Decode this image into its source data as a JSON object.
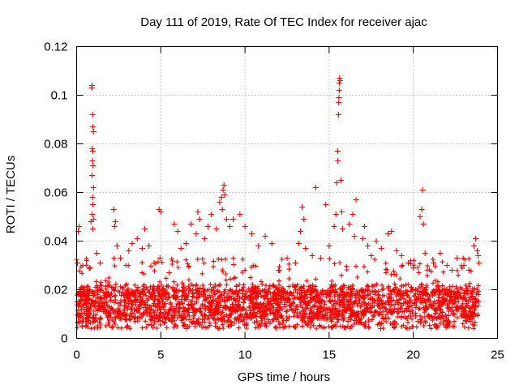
{
  "chart_data": {
    "type": "scatter",
    "title": "Day 111 of 2019, Rate Of TEC Index for receiver ajac",
    "xlabel": "GPS time / hours",
    "ylabel": "ROTI / TECUs",
    "xlim": [
      0,
      25
    ],
    "ylim": [
      0,
      0.12
    ],
    "xticks": [
      0,
      5,
      10,
      15,
      20,
      25
    ],
    "xtick_labels": [
      "0",
      "5",
      "10",
      "15",
      "20",
      "25"
    ],
    "yticks": [
      0,
      0.02,
      0.04,
      0.06,
      0.08,
      0.1,
      0.12
    ],
    "ytick_labels": [
      "0",
      "0.02",
      "0.04",
      "0.06",
      "0.08",
      "0.1",
      "0.12"
    ],
    "grid": true,
    "marker": "+",
    "color": "#ff0000",
    "series": [
      {
        "name": "ROTI",
        "points": [
          [
            0.05,
            0.031
          ],
          [
            0.1,
            0.044
          ],
          [
            0.15,
            0.046
          ],
          [
            0.2,
            0.019
          ],
          [
            0.3,
            0.021
          ],
          [
            0.5,
            0.018
          ],
          [
            0.8,
            0.029
          ],
          [
            0.85,
            0.048
          ],
          [
            0.9,
            0.103
          ],
          [
            0.92,
            0.104
          ],
          [
            0.95,
            0.092
          ],
          [
            0.97,
            0.087
          ],
          [
            1.0,
            0.085
          ],
          [
            0.93,
            0.078
          ],
          [
            0.96,
            0.077
          ],
          [
            0.94,
            0.073
          ],
          [
            0.98,
            0.071
          ],
          [
            0.92,
            0.067
          ],
          [
            1.0,
            0.062
          ],
          [
            0.95,
            0.058
          ],
          [
            0.97,
            0.055
          ],
          [
            0.93,
            0.051
          ],
          [
            1.0,
            0.049
          ],
          [
            0.96,
            0.045
          ],
          [
            1.2,
            0.035
          ],
          [
            1.4,
            0.031
          ],
          [
            2.2,
            0.053
          ],
          [
            2.3,
            0.048
          ],
          [
            2.25,
            0.046
          ],
          [
            2.4,
            0.038
          ],
          [
            2.6,
            0.033
          ],
          [
            3.1,
            0.036
          ],
          [
            3.3,
            0.039
          ],
          [
            3.6,
            0.041
          ],
          [
            3.9,
            0.037
          ],
          [
            4.05,
            0.045
          ],
          [
            4.3,
            0.038
          ],
          [
            4.6,
            0.031
          ],
          [
            4.9,
            0.053
          ],
          [
            5.0,
            0.052
          ],
          [
            4.95,
            0.033
          ],
          [
            5.5,
            0.027
          ],
          [
            5.8,
            0.047
          ],
          [
            6.0,
            0.044
          ],
          [
            6.2,
            0.037
          ],
          [
            6.5,
            0.039
          ],
          [
            6.8,
            0.047
          ],
          [
            7.1,
            0.043
          ],
          [
            7.2,
            0.052
          ],
          [
            7.3,
            0.049
          ],
          [
            7.6,
            0.041
          ],
          [
            7.8,
            0.046
          ],
          [
            8.0,
            0.051
          ],
          [
            8.3,
            0.045
          ],
          [
            8.5,
            0.056
          ],
          [
            8.6,
            0.058
          ],
          [
            8.7,
            0.061
          ],
          [
            8.75,
            0.063
          ],
          [
            8.8,
            0.059
          ],
          [
            8.65,
            0.053
          ],
          [
            8.9,
            0.049
          ],
          [
            9.1,
            0.046
          ],
          [
            9.3,
            0.049
          ],
          [
            9.7,
            0.051
          ],
          [
            10.0,
            0.046
          ],
          [
            10.4,
            0.043
          ],
          [
            10.8,
            0.038
          ],
          [
            11.2,
            0.042
          ],
          [
            11.6,
            0.039
          ],
          [
            12.0,
            0.028
          ],
          [
            12.5,
            0.033
          ],
          [
            13.0,
            0.031
          ],
          [
            13.2,
            0.039
          ],
          [
            13.3,
            0.044
          ],
          [
            13.4,
            0.054
          ],
          [
            13.5,
            0.049
          ],
          [
            13.6,
            0.037
          ],
          [
            14.0,
            0.034
          ],
          [
            14.2,
            0.062
          ],
          [
            14.5,
            0.033
          ],
          [
            14.8,
            0.055
          ],
          [
            15.0,
            0.038
          ],
          [
            15.3,
            0.046
          ],
          [
            15.4,
            0.051
          ],
          [
            15.45,
            0.064
          ],
          [
            15.5,
            0.077
          ],
          [
            15.52,
            0.073
          ],
          [
            15.55,
            0.092
          ],
          [
            15.57,
            0.097
          ],
          [
            15.6,
            0.102
          ],
          [
            15.6,
            0.105
          ],
          [
            15.62,
            0.107
          ],
          [
            15.65,
            0.106
          ],
          [
            15.58,
            0.099
          ],
          [
            15.7,
            0.065
          ],
          [
            15.75,
            0.052
          ],
          [
            15.8,
            0.045
          ],
          [
            16.2,
            0.047
          ],
          [
            16.4,
            0.051
          ],
          [
            16.6,
            0.057
          ],
          [
            16.5,
            0.042
          ],
          [
            17.0,
            0.041
          ],
          [
            17.1,
            0.046
          ],
          [
            17.3,
            0.038
          ],
          [
            17.5,
            0.034
          ],
          [
            17.8,
            0.04
          ],
          [
            18.1,
            0.037
          ],
          [
            18.5,
            0.043
          ],
          [
            18.7,
            0.044
          ],
          [
            19.0,
            0.036
          ],
          [
            19.3,
            0.034
          ],
          [
            19.7,
            0.031
          ],
          [
            20.0,
            0.029
          ],
          [
            20.4,
            0.05
          ],
          [
            20.5,
            0.053
          ],
          [
            20.55,
            0.061
          ],
          [
            20.6,
            0.047
          ],
          [
            20.7,
            0.035
          ],
          [
            21.2,
            0.031
          ],
          [
            21.6,
            0.035
          ],
          [
            22.0,
            0.03
          ],
          [
            22.3,
            0.028
          ],
          [
            22.6,
            0.033
          ],
          [
            23.0,
            0.03
          ],
          [
            23.3,
            0.028
          ],
          [
            23.6,
            0.038
          ],
          [
            23.7,
            0.041
          ],
          [
            23.8,
            0.036
          ],
          [
            23.85,
            0.034
          ],
          [
            23.9,
            0.031
          ]
        ]
      }
    ]
  }
}
